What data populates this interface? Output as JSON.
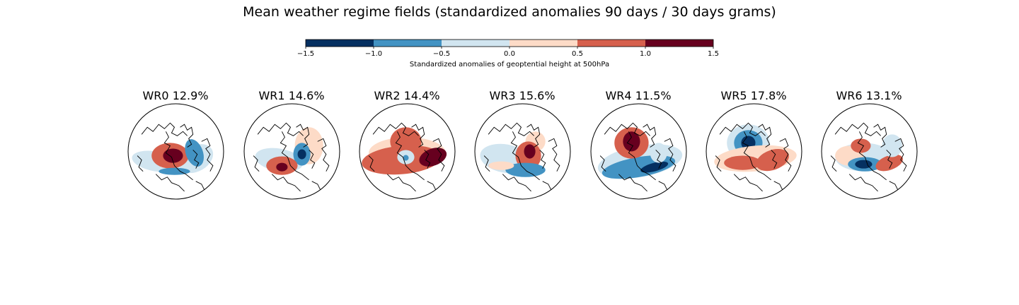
{
  "title": "Mean weather regime fields (standardized anomalies 90 days / 30 days grams)",
  "chart_data": {
    "type": "heatmap",
    "colorbar": {
      "label": "Standardized anomalies of geoptential height at 500hPa",
      "boundaries": [
        -1.5,
        -1.0,
        -0.5,
        0.0,
        0.5,
        1.0,
        1.5
      ],
      "tick_labels": [
        "−1.5",
        "−1.0",
        "−0.5",
        "0.0",
        "0.5",
        "1.0",
        "1.5"
      ],
      "colors": [
        "#053061",
        "#4393c3",
        "#d1e5f0",
        "#fddbc7",
        "#d6604d",
        "#67001f"
      ],
      "placement": "top"
    },
    "panels": [
      {
        "name": "WR0",
        "percent": "12.9%",
        "title": "WR0 12.9%"
      },
      {
        "name": "WR1",
        "percent": "14.6%",
        "title": "WR1 14.6%"
      },
      {
        "name": "WR2",
        "percent": "14.4%",
        "title": "WR2 14.4%"
      },
      {
        "name": "WR3",
        "percent": "15.6%",
        "title": "WR3 15.6%"
      },
      {
        "name": "WR4",
        "percent": "11.5%",
        "title": "WR4 11.5%"
      },
      {
        "name": "WR5",
        "percent": "17.8%",
        "title": "WR5 17.8%"
      },
      {
        "name": "WR6",
        "percent": "13.1%",
        "title": "WR6 13.1%"
      }
    ]
  }
}
